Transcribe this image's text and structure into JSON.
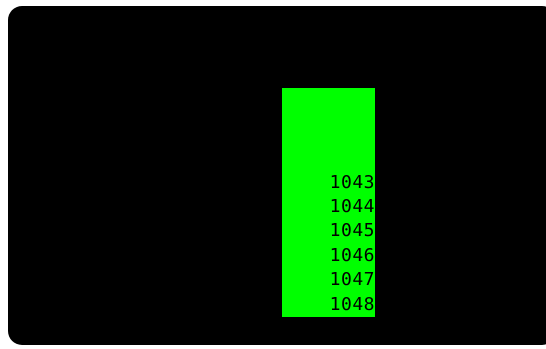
{
  "colors": {
    "background": "#000000",
    "panel": "#00ff00",
    "text": "#000000"
  },
  "terminal": {
    "lines": [
      "1043",
      "1044",
      "1045",
      "1046",
      "1047",
      "1048"
    ]
  }
}
